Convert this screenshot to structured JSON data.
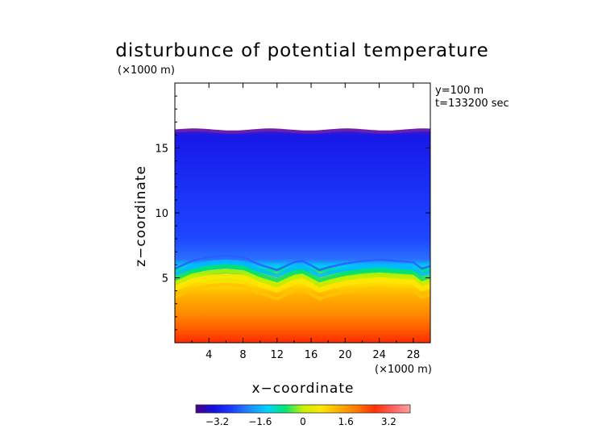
{
  "chart_data": {
    "type": "heatmap",
    "title": "disturbunce of potential temperature",
    "unit_note_top": "(×1000 m)",
    "unit_note_right": "(×1000 m)",
    "xlabel": "x−coordinate",
    "ylabel": "z−coordinate",
    "annotations": [
      "y=100 m",
      "t=133200 sec"
    ],
    "x_ticks": [
      4,
      8,
      12,
      16,
      20,
      24,
      28
    ],
    "x_tick_labels": [
      "4",
      "8",
      "12",
      "16",
      "20",
      "24",
      "28"
    ],
    "y_ticks": [
      5,
      10,
      15
    ],
    "y_tick_labels": [
      "5",
      "10",
      "15"
    ],
    "xlim": [
      0,
      30
    ],
    "ylim": [
      0,
      20
    ],
    "colorbar": {
      "range": [
        -4,
        4
      ],
      "ticks": [
        -3.2,
        -1.6,
        0,
        1.6,
        3.2
      ],
      "tick_labels": [
        "−3.2",
        "−1.6",
        "0",
        "1.6",
        "3.2"
      ],
      "colors": [
        "#4b0082",
        "#1010e0",
        "#1c3cff",
        "#1e8cff",
        "#00d2ff",
        "#00e676",
        "#c8f000",
        "#ffe600",
        "#ffb000",
        "#ff7a00",
        "#ff3000",
        "#ff6060",
        "#ffa0a0"
      ]
    },
    "field_description": {
      "domain_top_z": 16.3,
      "upper_layer_value": -2.4,
      "lower_layer_value": 2.8,
      "interface_z": [
        [
          0,
          4.7
        ],
        [
          2,
          5.3
        ],
        [
          4,
          5.6
        ],
        [
          6,
          5.7
        ],
        [
          8,
          5.6
        ],
        [
          10,
          5.0
        ],
        [
          12,
          4.6
        ],
        [
          14,
          5.2
        ],
        [
          15,
          5.3
        ],
        [
          17,
          4.6
        ],
        [
          18,
          4.8
        ],
        [
          20,
          5.1
        ],
        [
          22,
          5.3
        ],
        [
          24,
          5.4
        ],
        [
          26,
          5.3
        ],
        [
          28,
          5.2
        ],
        [
          29,
          4.7
        ],
        [
          30,
          4.9
        ]
      ]
    }
  }
}
